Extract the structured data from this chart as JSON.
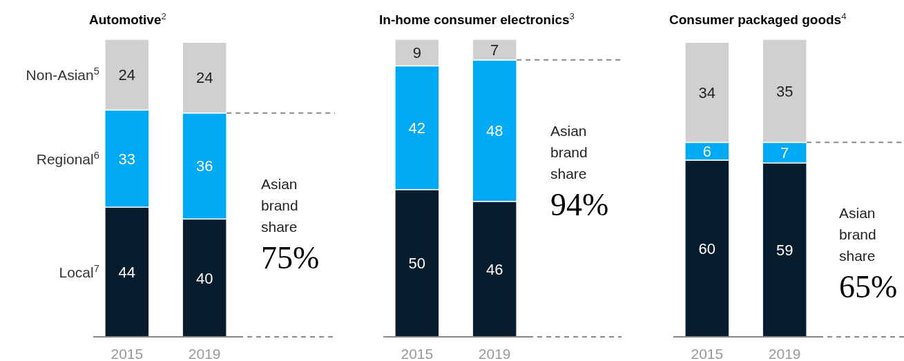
{
  "chart_data": [
    {
      "type": "bar",
      "title": "Automotive$^{2}$",
      "categories": [
        "2015",
        "2019"
      ],
      "stacked": true,
      "data_labels": true,
      "series": [
        {
          "name": "Local$^{7}$",
          "color": "#071c2c",
          "values": [
            44,
            40
          ]
        },
        {
          "name": "Regional$^{6}$",
          "color": "#00a9f4",
          "values": [
            33,
            36
          ]
        },
        {
          "name": "Non-Asian$^{5}$",
          "color": "#d0d0d0",
          "values": [
            24,
            24
          ]
        }
      ],
      "ref_lines": [
        {
          "axis": "y",
          "value": 76,
          "line_style": "dashed",
          "color": "#888888"
        }
      ],
      "annotations": [
        "Asian brand share",
        "75%"
      ]
    },
    {
      "type": "bar",
      "title": "In-home consumer electronics$^{3}$",
      "categories": [
        "2015",
        "2019"
      ],
      "stacked": true,
      "data_labels": true,
      "series": [
        {
          "color": "#071c2c",
          "values": [
            50,
            46
          ]
        },
        {
          "color": "#00a9f4",
          "values": [
            42,
            48
          ]
        },
        {
          "color": "#d0d0d0",
          "values": [
            9,
            7
          ]
        }
      ],
      "ref_lines": [
        {
          "axis": "y",
          "value": 94,
          "line_style": "dashed",
          "color": "#888888"
        }
      ],
      "annotations": [
        "Asian brand share",
        "94%"
      ]
    },
    {
      "type": "bar",
      "title": "Consumer packaged goods$^{4}$",
      "categories": [
        "2015",
        "2019"
      ],
      "stacked": true,
      "data_labels": true,
      "series": [
        {
          "color": "#071c2c",
          "values": [
            60,
            59
          ]
        },
        {
          "color": "#00a9f4",
          "values": [
            6,
            7
          ]
        },
        {
          "color": "#d0d0d0",
          "values": [
            34,
            35
          ]
        }
      ],
      "ref_lines": [
        {
          "axis": "y",
          "value": 66,
          "line_style": "dashed",
          "color": "#888888"
        }
      ],
      "annotations": [
        "Asian brand share",
        "65%"
      ]
    }
  ]
}
